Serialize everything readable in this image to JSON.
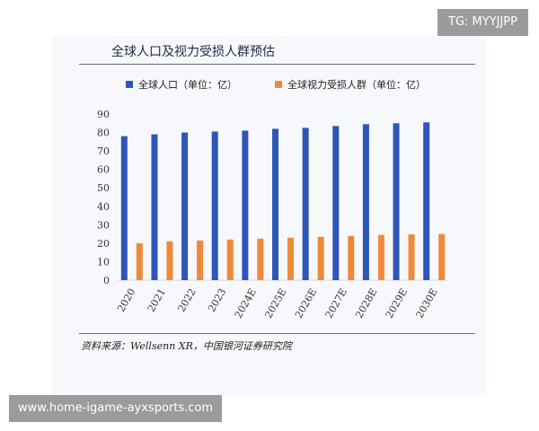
{
  "watermark_top": "TG: MYYJJPP",
  "watermark_bottom": "www.home-igame-ayxsports.com",
  "source_note": "资料来源：Wellsenn XR，中国银河证券研究院",
  "colors": {
    "series_1": "#2e55b8",
    "series_2": "#ee8a3a",
    "axis_text": "#333333"
  },
  "chart_data": {
    "type": "bar",
    "title": "全球人口及视力受损人群预估",
    "xlabel": "",
    "ylabel": "",
    "ylim": [
      0,
      90
    ],
    "yticks": [
      0,
      10,
      20,
      30,
      40,
      50,
      60,
      70,
      80,
      90
    ],
    "grid": false,
    "legend_position": "top",
    "categories": [
      "2020",
      "2021",
      "2022",
      "2023",
      "2024E",
      "2025E",
      "2026E",
      "2027E",
      "2028E",
      "2029E",
      "2030E"
    ],
    "series": [
      {
        "name": "全球人口（单位：亿）",
        "values": [
          78,
          79,
          80,
          80.5,
          81,
          82,
          82.5,
          83.5,
          84.5,
          85,
          85.5
        ]
      },
      {
        "name": "全球视力受损人群（单位：亿）",
        "values": [
          20,
          21,
          21.5,
          22,
          22.5,
          23,
          23.5,
          24,
          24.5,
          24.8,
          25
        ]
      }
    ]
  }
}
